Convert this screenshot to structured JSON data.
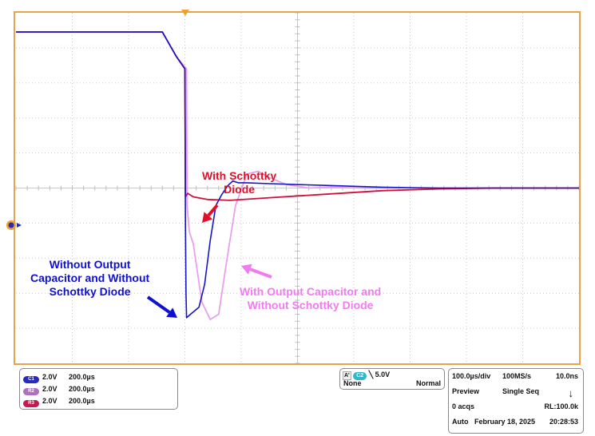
{
  "chart_data": {
    "type": "line",
    "title": "",
    "xlabel": "",
    "ylabel": "",
    "grid": true,
    "x_unit": "µs",
    "time_per_div_us": 100.0,
    "x_divisions": 10,
    "y_divisions": 10,
    "y_unit": "V",
    "xlim": [
      0,
      1000
    ],
    "ylim": [
      -10,
      10
    ],
    "series": [
      {
        "name": "",
        "color": "#1515c8",
        "points": [
          [
            0,
            8.9
          ],
          [
            260,
            8.9
          ],
          [
            285,
            7.5
          ],
          [
            300,
            6.8
          ],
          [
            301,
            -2
          ],
          [
            302,
            -6
          ],
          [
            303,
            -7.4
          ],
          [
            310,
            -7.2
          ],
          [
            325,
            -6.8
          ],
          [
            335,
            -5.5
          ],
          [
            345,
            -3
          ],
          [
            355,
            -1
          ],
          [
            365,
            -0.4
          ],
          [
            375,
            0.1
          ],
          [
            385,
            0.4
          ],
          [
            395,
            0.3
          ],
          [
            410,
            0.3
          ],
          [
            450,
            0.25
          ],
          [
            550,
            0.15
          ],
          [
            650,
            0.05
          ],
          [
            750,
            0.0
          ],
          [
            850,
            0.0
          ],
          [
            1000,
            0.0
          ]
        ]
      },
      {
        "name": "",
        "color": "#e8a0ee",
        "points": [
          [
            0,
            8.9
          ],
          [
            260,
            8.9
          ],
          [
            285,
            7.5
          ],
          [
            303,
            6.8
          ],
          [
            304,
            -1
          ],
          [
            308,
            -2.5
          ],
          [
            315,
            -3.2
          ],
          [
            330,
            -6.5
          ],
          [
            345,
            -7.5
          ],
          [
            360,
            -7.2
          ],
          [
            375,
            -4
          ],
          [
            390,
            -1
          ],
          [
            410,
            0.8
          ],
          [
            430,
            0.95
          ],
          [
            450,
            0.6
          ],
          [
            480,
            0.2
          ],
          [
            520,
            0.0
          ],
          [
            560,
            0.05
          ],
          [
            620,
            0.0
          ],
          [
            1000,
            0.0
          ]
        ]
      },
      {
        "name": "",
        "color": "#d0103a",
        "points": [
          [
            0,
            8.9
          ],
          [
            260,
            8.9
          ],
          [
            285,
            7.5
          ],
          [
            300,
            6.8
          ],
          [
            301,
            -0.5
          ],
          [
            305,
            -0.3
          ],
          [
            315,
            -0.5
          ],
          [
            340,
            -0.65
          ],
          [
            380,
            -0.7
          ],
          [
            450,
            -0.55
          ],
          [
            550,
            -0.35
          ],
          [
            650,
            -0.15
          ],
          [
            750,
            -0.05
          ],
          [
            850,
            0.0
          ],
          [
            1000,
            0.0
          ]
        ]
      }
    ]
  },
  "annotations": {
    "red_line1": "With Schottky",
    "red_line2": "Diode",
    "blue_line1": "Without Output",
    "blue_line2": "Capacitor and Without",
    "blue_line3": "Schottky Diode",
    "pink_line1": "With Output Capacitor and",
    "pink_line2": "Without Schottky Diode"
  },
  "channels": [
    {
      "badge": "C1",
      "scale": "2.0V",
      "timebase": "200.0µs"
    },
    {
      "badge": "R2",
      "scale": "2.0V",
      "timebase": "200.0µs"
    },
    {
      "badge": "R3",
      "scale": "2.0V",
      "timebase": "200.0µs"
    }
  ],
  "trigger": {
    "tag": "A'",
    "source": "C2",
    "level": "5.0V",
    "coupling": "None",
    "mode": "Normal"
  },
  "acquisition": {
    "horizontal": "100.0µs/div",
    "sample_rate": "100MS/s",
    "resolution": "10.0ns",
    "state": "Preview",
    "seq": "Single Seq",
    "acqs": "0 acqs",
    "record_length": "RL:100.0k",
    "mode": "Auto",
    "date": "February 18, 2025",
    "time": "20:28:53"
  }
}
